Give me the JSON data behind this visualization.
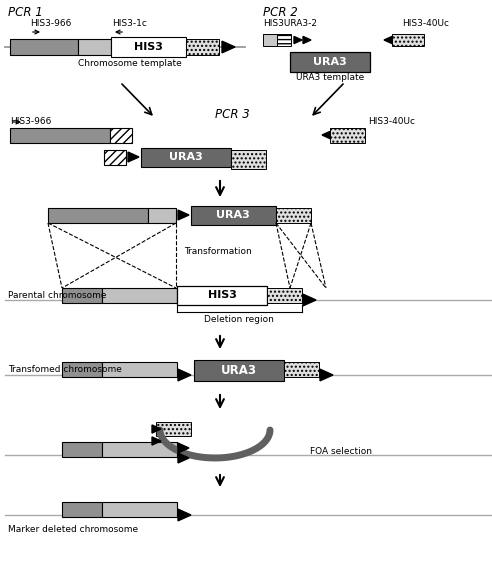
{
  "bg": "#ffffff",
  "c_dark": "#909090",
  "c_mid": "#c0c0c0",
  "c_ura3": "#686868",
  "c_line": "#aaaaaa",
  "labels": {
    "pcr1": "PCR 1",
    "pcr2": "PCR 2",
    "pcr3": "PCR 3",
    "his3": "HIS3",
    "ura3": "URA3",
    "chr_template": "Chromosome template",
    "ura3_template": "URA3 template",
    "his3_966": "HIS3-966",
    "his3_1c": "HIS3-1c",
    "his3ura3_2": "HIS3URA3-2",
    "his3_40uc": "HIS3-40Uc",
    "transformation": "Transformation",
    "deletion": "Deletion region",
    "parental": "Parental chromosome",
    "transformed": "Transfomed chromosome",
    "foa": "FOA selection",
    "marker_deleted": "Marker deleted chromosome"
  }
}
